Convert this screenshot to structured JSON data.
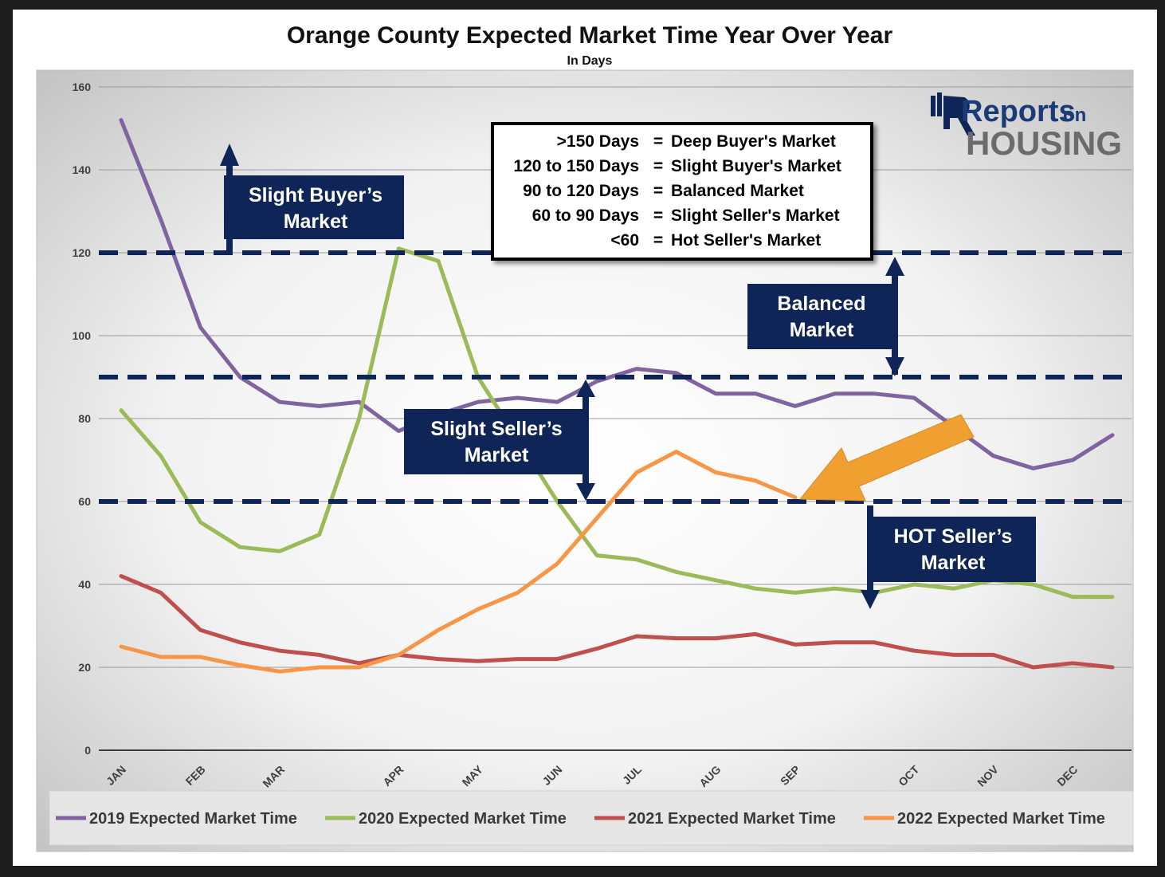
{
  "chart_data": {
    "type": "line",
    "title": "Orange County Expected Market Time Year Over Year",
    "subtitle": "In Days",
    "ylim": [
      0,
      160
    ],
    "y_ticks": [
      0,
      20,
      40,
      60,
      80,
      100,
      120,
      140,
      160
    ],
    "grid": true,
    "legend_position": "bottom",
    "x_tick_labels": [
      {
        "label": "JAN",
        "x": 0
      },
      {
        "label": "FEB",
        "x": 2
      },
      {
        "label": "MAR",
        "x": 4
      },
      {
        "label": "APR",
        "x": 7
      },
      {
        "label": "MAY",
        "x": 9
      },
      {
        "label": "JUN",
        "x": 11
      },
      {
        "label": "JUL",
        "x": 13
      },
      {
        "label": "AUG",
        "x": 15
      },
      {
        "label": "SEP",
        "x": 17
      },
      {
        "label": "OCT",
        "x": 20
      },
      {
        "label": "NOV",
        "x": 22
      },
      {
        "label": "DEC",
        "x": 24
      }
    ],
    "x_range": [
      0,
      25
    ],
    "series": [
      {
        "name": "2019 Expected Market Time",
        "color": "#8064a2",
        "values": [
          152,
          128,
          102,
          90,
          84,
          83,
          84,
          77,
          81,
          84,
          85,
          84,
          89,
          92,
          91,
          86,
          86,
          83,
          86,
          86,
          85,
          78,
          71,
          68,
          70,
          76
        ]
      },
      {
        "name": "2020 Expected Market Time",
        "color": "#9bbb59",
        "values": [
          82,
          71,
          55,
          49,
          48,
          52,
          80,
          121,
          118,
          90,
          75,
          60,
          47,
          46,
          43,
          41,
          39,
          38,
          39,
          38,
          40,
          39,
          41,
          40,
          37,
          37
        ]
      },
      {
        "name": "2021 Expected Market Time",
        "color": "#c0504d",
        "values": [
          42,
          38,
          29,
          26,
          24,
          23,
          21,
          23,
          22,
          21.5,
          22,
          22,
          24.5,
          27.5,
          27,
          27,
          28,
          25.5,
          26,
          26,
          24,
          23,
          23,
          20,
          21,
          20
        ]
      },
      {
        "name": "2022 Expected Market Time",
        "color": "#f79646",
        "values": [
          25,
          22.5,
          22.5,
          20.5,
          19,
          20,
          20,
          23,
          29,
          34,
          38,
          45,
          56,
          67,
          72,
          67,
          65,
          61
        ]
      }
    ],
    "reference_lines": [
      120,
      90,
      60
    ]
  },
  "callouts": {
    "slight_buyer": {
      "line1": "Slight Buyer’s",
      "line2": "Market"
    },
    "balanced": {
      "line1": "Balanced",
      "line2": "Market"
    },
    "slight_seller": {
      "line1": "Slight Seller’s",
      "line2": "Market"
    },
    "hot_seller": {
      "line1": "HOT Seller’s",
      "line2": "Market"
    }
  },
  "key_box": {
    "rows": [
      {
        "range": ">150 Days",
        "eq": "=",
        "label": "Deep Buyer's Market"
      },
      {
        "range": "120 to 150 Days",
        "eq": "=",
        "label": "Slight Buyer's Market"
      },
      {
        "range": "90 to 120 Days",
        "eq": "=",
        "label": "Balanced Market"
      },
      {
        "range": "60 to 90 Days",
        "eq": "=",
        "label": "Slight Seller's Market"
      },
      {
        "range": "<60",
        "eq": "=",
        "label": "Hot Seller's Market"
      }
    ]
  },
  "logo": {
    "line1": "Reports",
    "line1b": "on",
    "line2": "HOUSING"
  },
  "colors": {
    "navy": "#0f2557",
    "arrow_orange": "#f0a030",
    "plot_bg_center": "#ffffff",
    "plot_bg_edge": "#c9c9c9"
  }
}
